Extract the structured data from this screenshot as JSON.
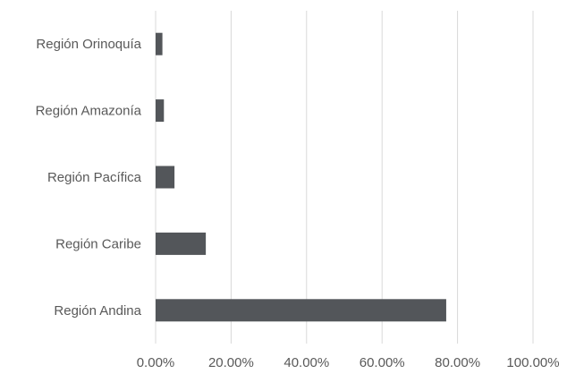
{
  "chart_data": {
    "type": "bar",
    "orientation": "horizontal",
    "categories": [
      "Región Orinoquía",
      "Región Amazonía",
      "Región Pacífica",
      "Región Caribe",
      "Región Andina"
    ],
    "values": [
      1.8,
      2.2,
      5.0,
      13.3,
      77.0
    ],
    "title": "",
    "xlabel": "",
    "ylabel": "",
    "xlim": [
      0,
      100
    ],
    "x_ticks": [
      "0.00%",
      "20.00%",
      "40.00%",
      "60.00%",
      "80.00%",
      "100.00%"
    ],
    "value_unit": "percent",
    "grid": "vertical",
    "legend": "none",
    "colors": {
      "bar": "#53565a",
      "grid": "#d9d9d9",
      "text": "#595959"
    }
  }
}
